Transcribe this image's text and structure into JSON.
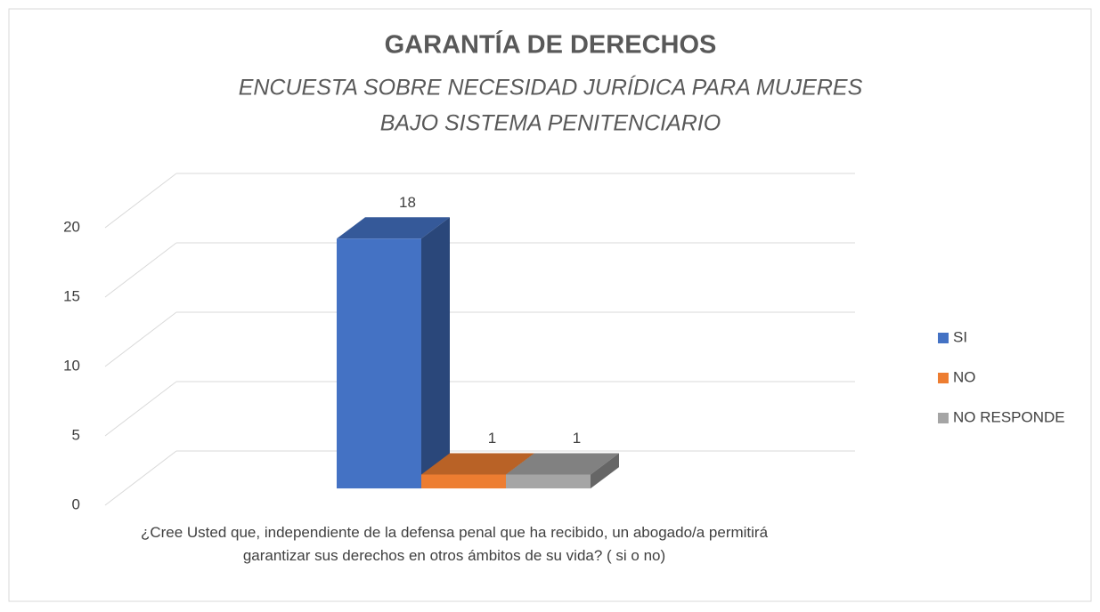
{
  "chart_data": {
    "type": "bar3d",
    "title": "GARANTÍA DE DERECHOS",
    "subtitle": [
      "ENCUESTA SOBRE NECESIDAD JURÍDICA PARA MUJERES",
      "BAJO SISTEMA PENITENCIARIO"
    ],
    "categories": [
      "¿Cree Usted que, independiente de la defensa penal que ha recibido, un abogado/a permitirá garantizar sus derechos en otros ámbitos de su vida?   ( si o no)"
    ],
    "series": [
      {
        "name": "SI",
        "color": "#4472c4",
        "values": [
          18
        ]
      },
      {
        "name": "NO",
        "color": "#ed7d31",
        "values": [
          1
        ]
      },
      {
        "name": "NO RESPONDE",
        "color": "#a5a5a5",
        "values": [
          1
        ]
      }
    ],
    "ylim": [
      0,
      20
    ],
    "yticks": [
      0,
      5,
      10,
      15,
      20
    ],
    "grid": true,
    "legend": "right"
  }
}
